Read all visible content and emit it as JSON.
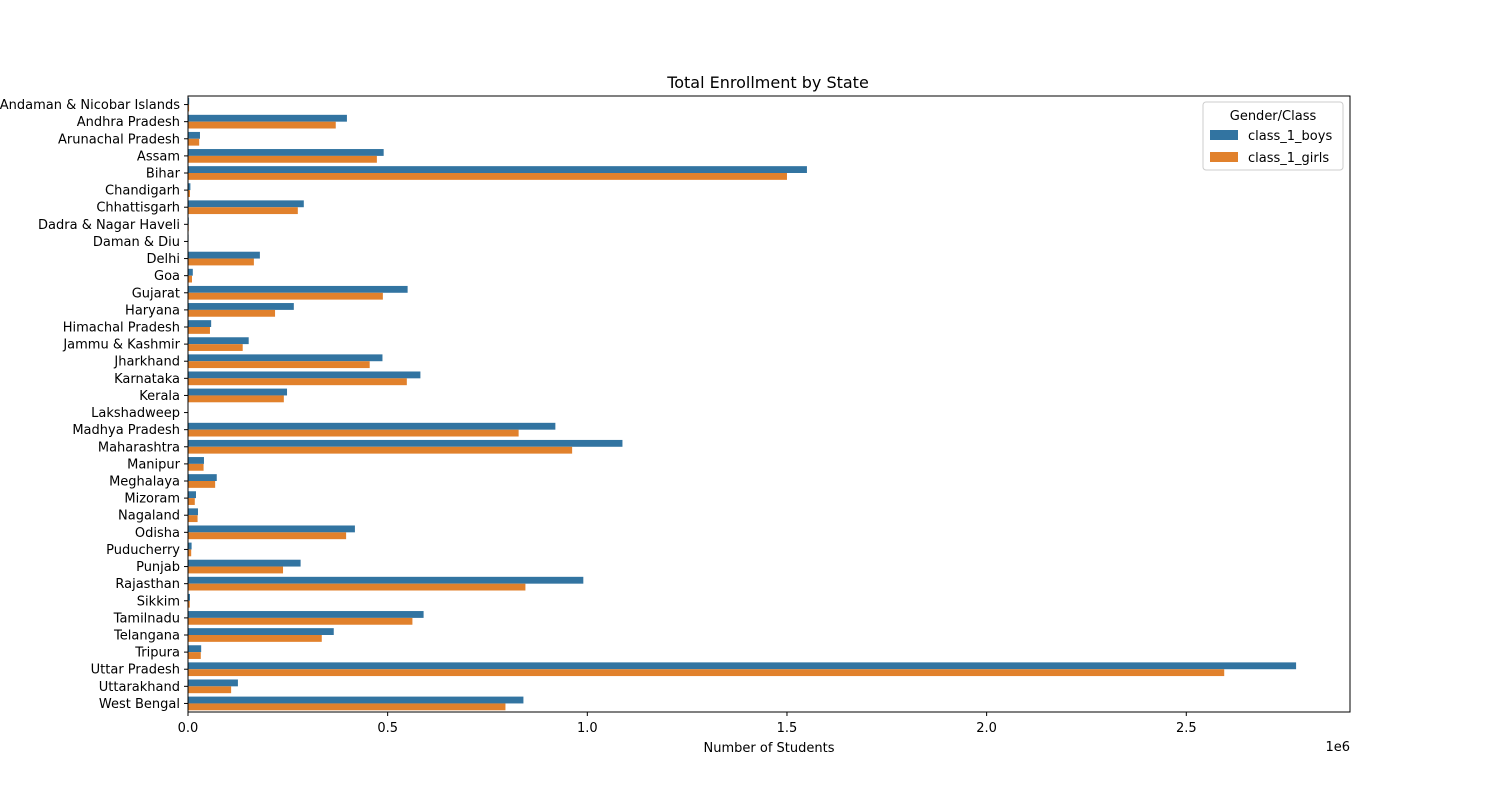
{
  "chart_data": {
    "type": "bar",
    "orientation": "horizontal",
    "title": "Total Enrollment by State",
    "xlabel": "Number of Students",
    "ylabel": "",
    "x_scale_label": "1e6",
    "xlim": [
      0,
      2910000
    ],
    "xticks": [
      0,
      500000,
      1000000,
      1500000,
      2000000,
      2500000
    ],
    "xtick_labels": [
      "0.0",
      "0.5",
      "1.0",
      "1.5",
      "2.0",
      "2.5"
    ],
    "grid": false,
    "legend": {
      "title": "Gender/Class",
      "placement": "top-right"
    },
    "categories": [
      "Andaman & Nicobar Islands",
      "Andhra Pradesh",
      "Arunachal Pradesh",
      "Assam",
      "Bihar",
      "Chandigarh",
      "Chhattisgarh",
      "Dadra & Nagar Haveli",
      "Daman & Diu",
      "Delhi",
      "Goa",
      "Gujarat",
      "Haryana",
      "Himachal Pradesh",
      "Jammu & Kashmir",
      "Jharkhand",
      "Karnataka",
      "Kerala",
      "Lakshadweep",
      "Madhya Pradesh",
      "Maharashtra",
      "Manipur",
      "Meghalaya",
      "Mizoram",
      "Nagaland",
      "Odisha",
      "Puducherry",
      "Punjab",
      "Rajasthan",
      "Sikkim",
      "Tamilnadu",
      "Telangana",
      "Tripura",
      "Uttar Pradesh",
      "Uttarakhand",
      "West Bengal"
    ],
    "series": [
      {
        "name": "class_1_boys",
        "color": "#3274a1",
        "values": [
          3000,
          398000,
          30000,
          490000,
          1550000,
          6000,
          290000,
          2000,
          1500,
          180000,
          12000,
          550000,
          265000,
          58000,
          152000,
          487000,
          582000,
          248000,
          500,
          920000,
          1088000,
          40000,
          72000,
          20000,
          25000,
          418000,
          9000,
          282000,
          990000,
          5000,
          590000,
          365000,
          33000,
          2775000,
          125000,
          840000
        ]
      },
      {
        "name": "class_1_girls",
        "color": "#e1812c",
        "values": [
          2800,
          370000,
          28000,
          473000,
          1500000,
          5000,
          275000,
          1800,
          1200,
          165000,
          10000,
          488000,
          218000,
          55000,
          137000,
          455000,
          548000,
          240000,
          400,
          828000,
          962000,
          39000,
          68000,
          17000,
          24000,
          396000,
          8000,
          238000,
          845000,
          4500,
          562000,
          335000,
          32000,
          2595000,
          108000,
          795000
        ]
      }
    ]
  }
}
